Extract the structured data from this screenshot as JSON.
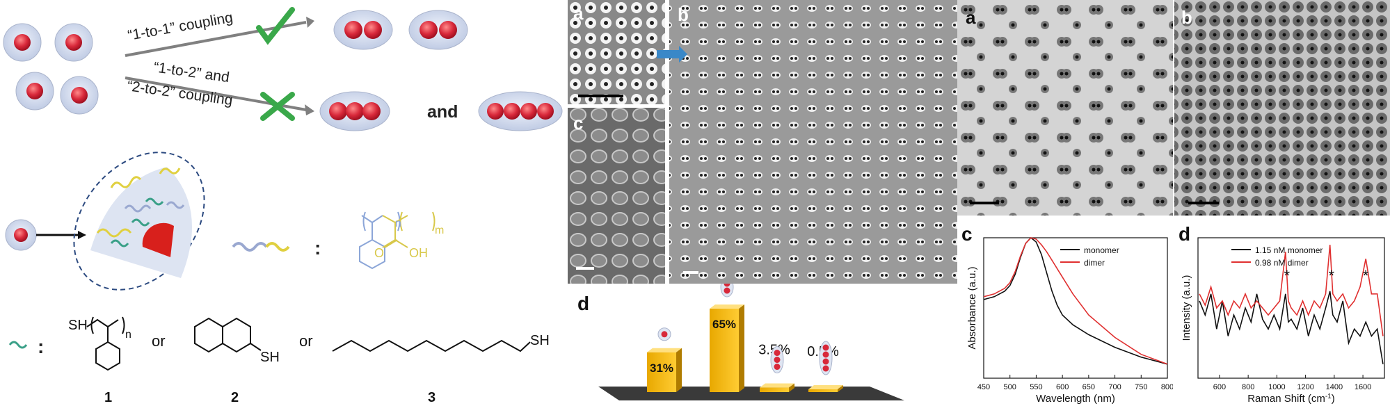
{
  "scheme": {
    "arrow1_label": "“1-to-1” coupling",
    "arrow2_label_line1": "“1-to-2” and",
    "arrow2_label_line2": "“2-to-2” coupling",
    "and_text": "and",
    "colon": ":",
    "or1": "or",
    "or2": "or",
    "compound_labels": [
      "1",
      "2",
      "3"
    ],
    "sh": "SH",
    "oh": "OH",
    "o": "O",
    "n": "n",
    "m": "m"
  },
  "tem_left": {
    "panel_a": "a",
    "panel_b": "b",
    "panel_c": "c"
  },
  "bar_panel": {
    "label": "d",
    "chart_data": {
      "type": "bar",
      "categories": [
        "monomer",
        "dimer",
        "trimer",
        "tetramer"
      ],
      "values": [
        31,
        65,
        3.5,
        0.5
      ],
      "value_labels": [
        "31%",
        "65%",
        "3.5%",
        "0.5%"
      ]
    }
  },
  "tem_right": {
    "panel_a": "a",
    "panel_b": "b"
  },
  "absorbance": {
    "label": "c",
    "chart_data": {
      "type": "line",
      "xlabel": "Wavelength (nm)",
      "ylabel": "Absorbance (a.u.)",
      "xlim": [
        450,
        800
      ],
      "xticks": [
        450,
        500,
        550,
        600,
        650,
        700,
        750,
        800
      ],
      "series": [
        {
          "name": "monomer",
          "color": "#111111",
          "x": [
            450,
            470,
            490,
            500,
            510,
            520,
            530,
            540,
            550,
            560,
            570,
            580,
            590,
            600,
            620,
            650,
            700,
            750,
            800
          ],
          "y": [
            0.56,
            0.58,
            0.62,
            0.66,
            0.74,
            0.86,
            0.96,
            1.0,
            0.97,
            0.88,
            0.75,
            0.62,
            0.52,
            0.45,
            0.38,
            0.31,
            0.22,
            0.15,
            0.1
          ]
        },
        {
          "name": "dimer",
          "color": "#e03030",
          "x": [
            450,
            470,
            490,
            500,
            510,
            520,
            530,
            540,
            550,
            560,
            570,
            580,
            600,
            620,
            650,
            700,
            750,
            800
          ],
          "y": [
            0.58,
            0.6,
            0.64,
            0.68,
            0.76,
            0.87,
            0.96,
            1.0,
            0.99,
            0.95,
            0.9,
            0.84,
            0.72,
            0.6,
            0.45,
            0.29,
            0.17,
            0.1
          ]
        }
      ]
    }
  },
  "raman": {
    "label": "d",
    "chart_data": {
      "type": "line",
      "xlabel": "Raman Shift (cm",
      "xlabel_sup": "-1",
      "xlabel_end": ")",
      "ylabel": "Intensity (a.u.)",
      "xlim": [
        450,
        1750
      ],
      "xticks": [
        600,
        800,
        1000,
        1200,
        1400,
        1600
      ],
      "annotations": [
        "*",
        "*",
        "*"
      ],
      "annotation_x": [
        1070,
        1380,
        1620
      ],
      "series": [
        {
          "name": "1.15 nM monomer",
          "color": "#111111",
          "x": [
            460,
            500,
            540,
            580,
            620,
            660,
            700,
            740,
            780,
            820,
            860,
            900,
            940,
            980,
            1020,
            1060,
            1080,
            1100,
            1140,
            1180,
            1220,
            1260,
            1300,
            1340,
            1370,
            1390,
            1420,
            1460,
            1500,
            1540,
            1580,
            1620,
            1660,
            1700,
            1740
          ],
          "y": [
            0.55,
            0.45,
            0.6,
            0.35,
            0.55,
            0.3,
            0.45,
            0.35,
            0.5,
            0.4,
            0.6,
            0.42,
            0.35,
            0.45,
            0.35,
            0.6,
            0.4,
            0.42,
            0.35,
            0.5,
            0.3,
            0.45,
            0.35,
            0.5,
            0.62,
            0.45,
            0.4,
            0.55,
            0.25,
            0.35,
            0.3,
            0.4,
            0.3,
            0.35,
            0.1
          ]
        },
        {
          "name": "0.98 nM dimer",
          "color": "#e03030",
          "x": [
            460,
            500,
            540,
            580,
            620,
            660,
            700,
            740,
            780,
            820,
            860,
            900,
            940,
            980,
            1020,
            1060,
            1080,
            1100,
            1140,
            1180,
            1220,
            1260,
            1300,
            1340,
            1370,
            1390,
            1420,
            1460,
            1500,
            1540,
            1580,
            1620,
            1660,
            1700,
            1740
          ],
          "y": [
            0.6,
            0.52,
            0.65,
            0.5,
            0.55,
            0.45,
            0.55,
            0.5,
            0.6,
            0.5,
            0.55,
            0.5,
            0.45,
            0.5,
            0.55,
            0.9,
            0.55,
            0.5,
            0.45,
            0.55,
            0.45,
            0.55,
            0.5,
            0.6,
            0.95,
            0.6,
            0.55,
            0.6,
            0.5,
            0.55,
            0.65,
            0.85,
            0.6,
            0.6,
            0.3
          ]
        }
      ]
    }
  }
}
